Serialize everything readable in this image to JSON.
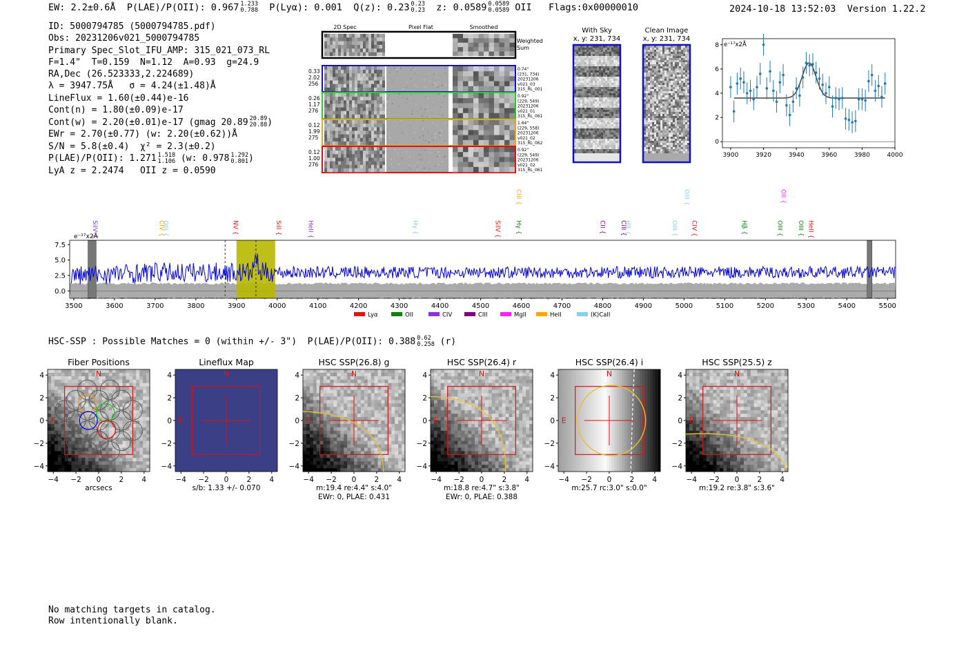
{
  "header": {
    "ew_label": "EW: 2.2±0.6Å",
    "plae_label": "P(LAE)/P(OII):",
    "plae_value": "0.967",
    "plae_hi": "1.233",
    "plae_lo": "0.788",
    "plya_label": "P(Lyα): 0.001",
    "qz_label": "Q(z): 0.23",
    "qz_hi": "0.23",
    "qz_lo": "0.23",
    "z_label": "z: 0.0589",
    "z_hi": "0.0589",
    "z_lo": "0.0589",
    "z_line": "OII",
    "flags": "Flags:0x00000010",
    "timestamp": "2024-10-18 13:52:03",
    "version": "Version 1.22.2"
  },
  "info": {
    "id": "ID: 5000794785 (5000794785.pdf)",
    "obs": "Obs: 20231206v021_5000794785",
    "slot": "Primary Spec_Slot_IFU_AMP: 315_021_073_RL",
    "params": "F=1.4\"  T=0.159  N=1.12  A=0.93  g=24.9",
    "radec": "RA,Dec (26.523333,2.224689)",
    "lambda": "λ = 3947.75Å   σ = 4.24(±1.48)Å",
    "lineflux": "LineFlux = 1.60(±0.44)e-16",
    "contn": "Cont(n) = 1.80(±0.09)e-17",
    "contw": "Cont(w) = 2.20(±0.01)e-17 (gmag 20.89",
    "gmag_hi": "20.89",
    "gmag_lo": "20.88",
    "ewr": "EWr = 2.70(±0.77) (w: 2.20(±0.62))Å",
    "sn": "S/N = 5.8(±0.4)  χ² = 2.3(±0.2)",
    "plae": "P(LAE)/P(OII): 1.271",
    "plae_hi": "1.518",
    "plae_lo": "1.106",
    "plae_w": "(w: 0.978",
    "plae_w_hi": "1.292",
    "plae_w_lo": "0.801",
    "lyaz": "LyA z = 2.2474   OII z = 0.0590"
  },
  "cutouts": {
    "col_2d": "2D Spec",
    "col_flat": "Pixel Flat",
    "col_smooth": "Smoothed",
    "weighted": "Weighted",
    "sum": "Sum",
    "rows": [
      {
        "w1": "0.33",
        "w2": "2.02",
        "w3": "256",
        "r1": "0.74\"",
        "r2": "(231, 734)",
        "r3": "20231206",
        "r4": "v021_03",
        "r5": "315_RL_001",
        "color": "#1010cc"
      },
      {
        "w1": "0.26",
        "w2": "1.17",
        "w3": "276",
        "r1": "0.92\"",
        "r2": "(229, 549)",
        "r3": "20231206",
        "r4": "v021_01",
        "r5": "315_RL_061",
        "color": "#22cc22"
      },
      {
        "w1": "0.12",
        "w2": "1.99",
        "w3": "275",
        "r1": "1.64\"",
        "r2": "(229, 558)",
        "r3": "20231206",
        "r4": "v021_02",
        "r5": "315_RL_062",
        "color": "#f0a020"
      },
      {
        "w1": "0.12",
        "w2": "1.00",
        "w3": "276",
        "r1": "0.92\"",
        "r2": "(229, 549)",
        "r3": "20231206",
        "r4": "v021_02",
        "r5": "315_RL_061",
        "color": "#e01010"
      }
    ],
    "with_sky_title": "With Sky",
    "with_sky_xy": "x, y: 231, 734",
    "clean_title": "Clean Image",
    "clean_xy": "x, y: 231, 734"
  },
  "zoom_chart": {
    "unit": "e⁻¹⁷x2Å"
  },
  "spectrum": {
    "unit": "e⁻¹⁷x2Å"
  },
  "legend": [
    "Lyα",
    "OII",
    "CIV",
    "CIII",
    "MgII",
    "HeII",
    "(K)CaII"
  ],
  "legend_colors": [
    "#e81010",
    "#108010",
    "#9030e0",
    "#800080",
    "#ff20ff",
    "#ffa500",
    "#87ceeb"
  ],
  "hsc": {
    "summary": "HSC-SSP : Possible Matches = 0 (within +/- 3\")  P(LAE)/P(OII): 0.388",
    "summary_hi": "0.62",
    "summary_lo": "0.258",
    "summary_band": "(r)",
    "panels": [
      {
        "title": "Fiber Positions",
        "cap1": "arcsecs",
        "cap2": ""
      },
      {
        "title": "Lineflux Map",
        "cap1": "s/b: 1.33 +/- 0.070",
        "cap2": ""
      },
      {
        "title": "HSC SSP(26.8) g",
        "cap1": "m:19.4  re:4.4\"  s:4.0\"",
        "cap2": "EWr: 0, PLAE: 0.431"
      },
      {
        "title": "HSC SSP(26.4) r",
        "cap1": "m:18.8  re:4.7\"  s:3.8\"",
        "cap2": "EWr: 0, PLAE: 0.388"
      },
      {
        "title": "HSC SSP(26.4) i",
        "cap1": "m:25.7 rc:3.0\"  s:0.0\"",
        "cap2": ""
      },
      {
        "title": "HSC SSP(25.5) z",
        "cap1": "m:19.2  re:3.8\"  s:3.6\"",
        "cap2": ""
      }
    ],
    "north": "N",
    "east": "E",
    "ticks": [
      "4",
      "2",
      "0",
      "−2",
      "−4"
    ],
    "xticks": [
      "−4",
      "−2",
      "0",
      "2",
      "4"
    ]
  },
  "footer": {
    "line1": "No matching targets in catalog.",
    "line2": "Row intentionally blank."
  },
  "chart_data": [
    {
      "type": "scatter",
      "ylabel": "e⁻¹⁷x2Å",
      "xlim": [
        3895,
        4000
      ],
      "ylim": [
        -0.5,
        8.5
      ],
      "xticks": [
        3900,
        3920,
        3940,
        3960,
        3980,
        4000
      ],
      "yticks": [
        0,
        2,
        4,
        6,
        8
      ],
      "x": [
        3900,
        3902,
        3904,
        3906,
        3908,
        3910,
        3912,
        3914,
        3916,
        3918,
        3920,
        3922,
        3924,
        3926,
        3928,
        3930,
        3932,
        3934,
        3936,
        3938,
        3940,
        3942,
        3944,
        3946,
        3948,
        3950,
        3952,
        3954,
        3956,
        3958,
        3960,
        3962,
        3964,
        3966,
        3968,
        3970,
        3972,
        3974,
        3976,
        3978,
        3980,
        3982,
        3984,
        3986,
        3988,
        3990,
        3992,
        3994
      ],
      "y": [
        4.5,
        2.5,
        4.8,
        5.2,
        4.9,
        4.0,
        4.2,
        3.5,
        4.5,
        5.6,
        8.0,
        4.4,
        5.8,
        4.2,
        3.3,
        4.9,
        5.5,
        3.0,
        2.2,
        3.3,
        4.4,
        3.8,
        5.3,
        6.5,
        6.3,
        6.4,
        5.7,
        5.2,
        4.7,
        4.0,
        4.5,
        2.9,
        3.6,
        3.5,
        3.6,
        1.9,
        1.8,
        1.6,
        1.7,
        3.5,
        3.5,
        3.4,
        5.0,
        5.5,
        4.2,
        4.6,
        3.7,
        4.8
      ],
      "yerr": [
        0.9,
        0.9,
        0.9,
        0.9,
        0.9,
        0.9,
        0.9,
        0.9,
        0.9,
        0.9,
        0.9,
        0.9,
        0.9,
        0.9,
        0.9,
        0.9,
        0.9,
        0.9,
        0.9,
        0.9,
        0.9,
        0.9,
        0.9,
        0.9,
        0.9,
        0.9,
        0.9,
        0.9,
        0.9,
        0.9,
        0.9,
        0.9,
        0.9,
        0.9,
        0.9,
        0.9,
        0.9,
        0.9,
        0.9,
        0.9,
        0.9,
        0.9,
        0.9,
        0.9,
        0.9,
        0.9,
        0.9,
        0.9
      ],
      "model": {
        "type": "gaussian",
        "center": 3947.75,
        "sigma": 4.24,
        "continuum": 3.6,
        "amplitude": 2.9,
        "range": [
          3902,
          3994
        ]
      },
      "marker_color": "#1f77b4",
      "model_color": "#404040"
    },
    {
      "type": "line",
      "ylabel": "e⁻¹⁷x2Å",
      "xlim": [
        3490,
        5520
      ],
      "ylim": [
        -1.2,
        8.2
      ],
      "xticks": [
        3500,
        3600,
        3700,
        3800,
        3900,
        4000,
        4100,
        4200,
        4300,
        4400,
        4500,
        4600,
        4700,
        4800,
        4900,
        5000,
        5100,
        5200,
        5300,
        5400,
        5500
      ],
      "yticks": [
        0.0,
        2.5,
        5.0,
        7.5
      ],
      "series_color": "#0000dd",
      "error_color": "#aaaaaa",
      "error_level": 1.2,
      "continuum_level": 3.0,
      "highlight_band": [
        3900,
        3995
      ],
      "highlight_color": "#b8b800",
      "masked_bands": [
        [
          3535,
          3555
        ],
        [
          5450,
          5462
        ]
      ],
      "dashed_lines": [
        3872,
        3947.75
      ],
      "line_markers": [
        {
          "name": "SiIV",
          "x": 3553,
          "color": "#9030e0",
          "row": 0
        },
        {
          "name": "CIV",
          "x": 3716,
          "color": "#ffa500",
          "row": 0
        },
        {
          "name": "OIII",
          "x": 3727,
          "color": "#87ceeb",
          "row": 0
        },
        {
          "name": "NV",
          "x": 3898,
          "color": "#e81010",
          "row": 0
        },
        {
          "name": "SiII",
          "x": 4004,
          "color": "#e81010",
          "row": 0
        },
        {
          "name": "HeII",
          "x": 4083,
          "color": "#9030e0",
          "row": 0
        },
        {
          "name": "Hγ",
          "x": 4340,
          "color": "#87ceeb",
          "row": 0
        },
        {
          "name": "SiIV",
          "x": 4542,
          "color": "#e81010",
          "row": 0
        },
        {
          "name": "CIII",
          "x": 4594,
          "color": "#ffa500",
          "row": 1
        },
        {
          "name": "Hγ",
          "x": 4594,
          "color": "#108010",
          "row": 0
        },
        {
          "name": "CII",
          "x": 4800,
          "color": "#800080",
          "row": 0
        },
        {
          "name": "CIII",
          "x": 4852,
          "color": "#800080",
          "row": 0
        },
        {
          "name": "Hβ",
          "x": 4862,
          "color": "#87ceeb",
          "row": 0
        },
        {
          "name": "OIII",
          "x": 4977,
          "color": "#87ceeb",
          "row": 0
        },
        {
          "name": "CIV",
          "x": 5026,
          "color": "#e81010",
          "row": 0
        },
        {
          "name": "OIII",
          "x": 5007,
          "color": "#87ceeb",
          "row": 1
        },
        {
          "name": "Hβ",
          "x": 5149,
          "color": "#108010",
          "row": 0
        },
        {
          "name": "OIII",
          "x": 5236,
          "color": "#108010",
          "row": 0
        },
        {
          "name": "OII",
          "x": 5244,
          "color": "#ff20ff",
          "row": 1
        },
        {
          "name": "OIII",
          "x": 5288,
          "color": "#108010",
          "row": 0
        },
        {
          "name": "HeII",
          "x": 5312,
          "color": "#e81010",
          "row": 0
        }
      ]
    }
  ]
}
